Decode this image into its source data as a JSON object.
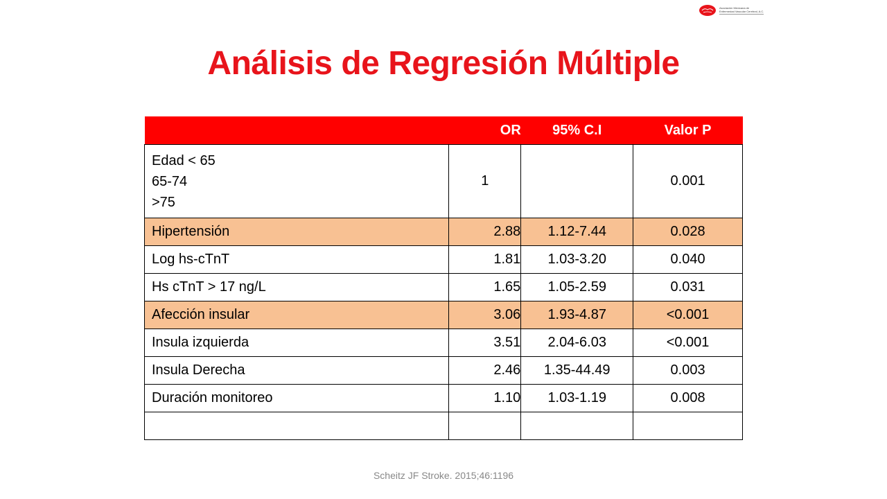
{
  "slide": {
    "logo": {
      "line1": "Asociación Mexicana de",
      "line2": "Enfermedad Vascular Cerebral, A.C."
    },
    "title": "Análisis de Regresión Múltiple",
    "table": {
      "headers": [
        "",
        "OR",
        "95% C.I",
        "Valor P"
      ],
      "rows": [
        {
          "label_lines": [
            "Edad < 65",
            "65-74",
            ">75"
          ],
          "or": "1",
          "ci": "",
          "p": "0.001",
          "highlight": false
        },
        {
          "label": "Hipertensión",
          "or": "2.88",
          "ci": "1.12-7.44",
          "p": "0.028",
          "highlight": true
        },
        {
          "label": "Log hs-cTnT",
          "or": "1.81",
          "ci": "1.03-3.20",
          "p": "0.040",
          "highlight": false
        },
        {
          "label": "Hs cTnT > 17 ng/L",
          "or": "1.65",
          "ci": "1.05-2.59",
          "p": "0.031",
          "highlight": false
        },
        {
          "label": "Afección insular",
          "or": "3.06",
          "ci": "1.93-4.87",
          "p": "<0.001",
          "highlight": true
        },
        {
          "label": "Insula izquierda",
          "or": "3.51",
          "ci": "2.04-6.03",
          "p": "<0.001",
          "highlight": false
        },
        {
          "label": "Insula Derecha",
          "or": "2.46",
          "ci": "1.35-44.49",
          "p": "0.003",
          "highlight": false
        },
        {
          "label": "Duración monitoreo",
          "or": "1.10",
          "ci": "1.03-1.19",
          "p": "0.008",
          "highlight": false
        },
        {
          "label": "",
          "or": "",
          "ci": "",
          "p": "",
          "highlight": false
        }
      ]
    },
    "citation": "Scheitz JF Stroke. 2015;46:1196",
    "colors": {
      "title": "#e8141b",
      "header_bg": "#ff0000",
      "highlight_row": "#f8c193",
      "logo_brain": "#e8141b"
    }
  }
}
